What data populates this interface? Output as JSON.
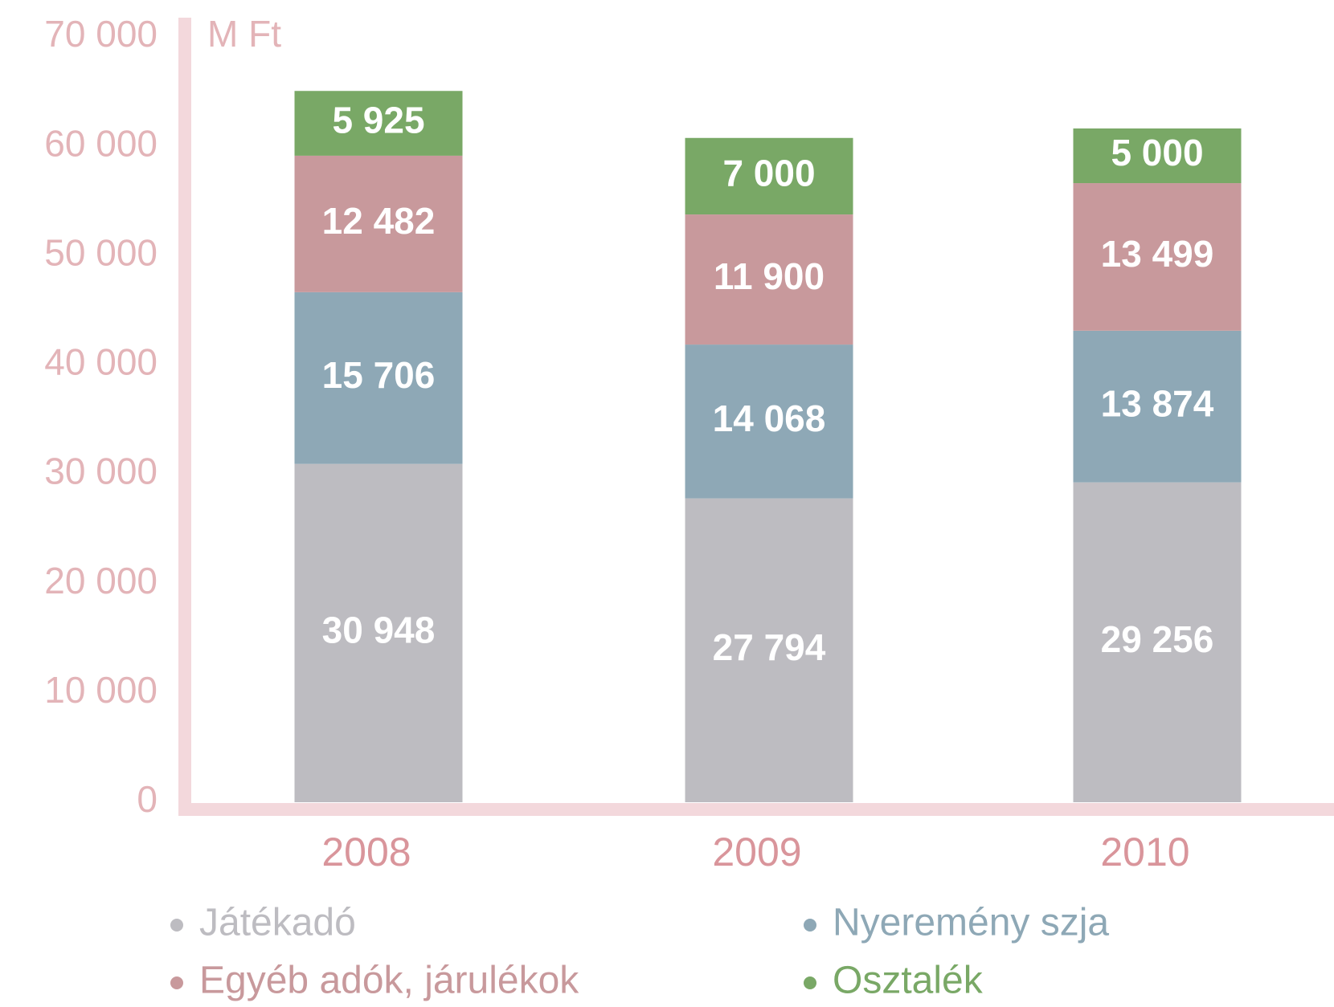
{
  "chart_data": {
    "type": "bar",
    "stacked": true,
    "axis_label": "M Ft",
    "categories": [
      "2008",
      "2009",
      "2010"
    ],
    "series": [
      {
        "name": "Játékadó",
        "color": "#bdbcc1",
        "values": [
          30948,
          27794,
          29256
        ],
        "value_labels": [
          "30 948",
          "27 794",
          "29 256"
        ]
      },
      {
        "name": "Nyeremény szja",
        "color": "#8ea8b6",
        "values": [
          15706,
          14068,
          13874
        ],
        "value_labels": [
          "15 706",
          "14 068",
          "13 874"
        ]
      },
      {
        "name": "Egyéb adók, járulékok",
        "color": "#c8999c",
        "values": [
          12482,
          11900,
          13499
        ],
        "value_labels": [
          "12 482",
          "11 900",
          "13 499"
        ]
      },
      {
        "name": "Osztalék",
        "color": "#79a866",
        "values": [
          5925,
          7000,
          5000
        ],
        "value_labels": [
          "5 925",
          "7 000",
          "5 000"
        ]
      }
    ],
    "ylim": [
      0,
      70000
    ],
    "yticks": [
      0,
      {
        "value": 10000,
        "label": "10 000"
      },
      {
        "value": 20000,
        "label": "20 000"
      },
      {
        "value": 30000,
        "label": "30 000"
      },
      {
        "value": 40000,
        "label": "40 000"
      },
      {
        "value": 50000,
        "label": "50 000"
      },
      {
        "value": 60000,
        "label": "60 000"
      },
      {
        "value": 70000,
        "label": "70 000"
      }
    ],
    "grid": false
  }
}
